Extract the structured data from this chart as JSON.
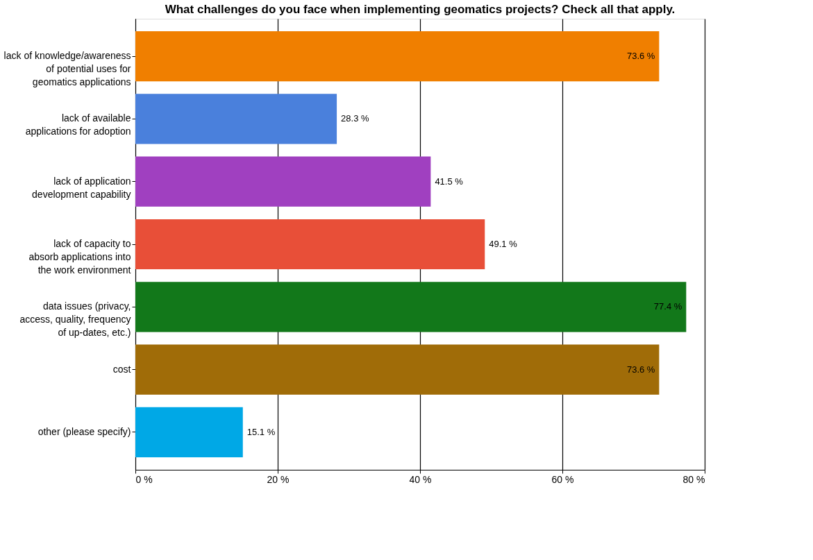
{
  "chart_data": {
    "type": "bar",
    "orientation": "horizontal",
    "title": "What challenges do you face when implementing geomatics projects? Check all that apply.",
    "categories": [
      "lack of knowledge/awareness\nof potential uses for\ngeomatics applications",
      "lack of available\napplications for adoption",
      "lack of application\ndevelopment capability",
      "lack of capacity to\nabsorb applications into\nthe work environment",
      "data issues (privacy,\naccess, quality, frequency\nof up-dates, etc.)",
      "cost",
      "other (please specify)"
    ],
    "values": [
      73.6,
      28.3,
      41.5,
      49.1,
      77.4,
      73.6,
      15.1
    ],
    "value_labels": [
      "73.6 %",
      "28.3 %",
      "41.5 %",
      "49.1 %",
      "77.4 %",
      "73.6 %",
      "15.1 %"
    ],
    "colors": [
      "#f07f00",
      "#4a80dc",
      "#a040c0",
      "#e84f38",
      "#12781a",
      "#a06c08",
      "#00a8e6"
    ],
    "xlim": [
      0,
      80
    ],
    "xticks": [
      {
        "value": 0,
        "label": "0 %"
      },
      {
        "value": 20,
        "label": "20 %"
      },
      {
        "value": 40,
        "label": "40 %"
      },
      {
        "value": 60,
        "label": "60 %"
      },
      {
        "value": 80,
        "label": "80 %"
      }
    ],
    "grid": "x"
  }
}
